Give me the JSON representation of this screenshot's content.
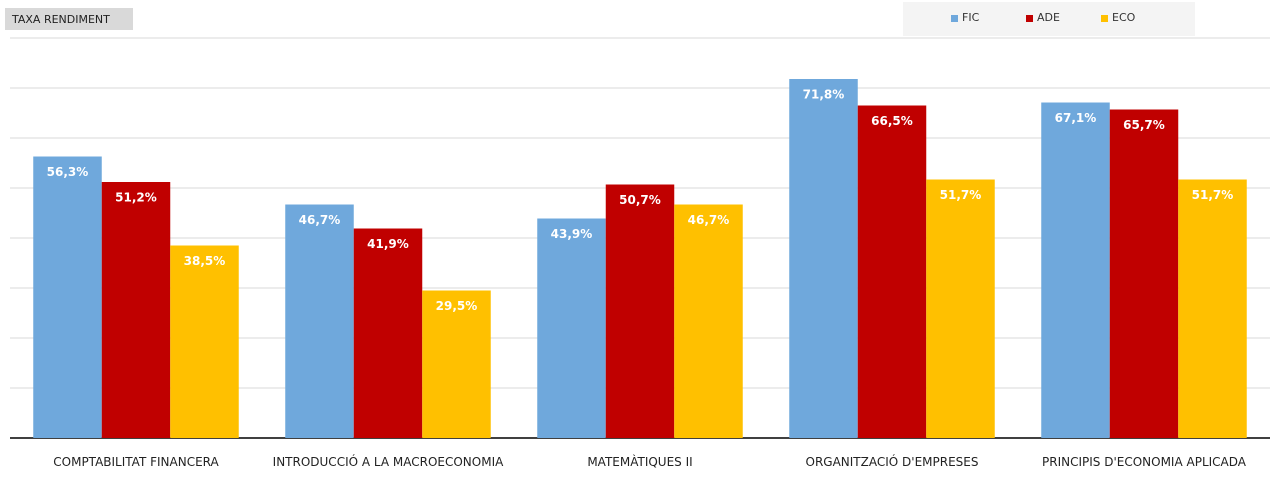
{
  "chart_data": {
    "type": "bar",
    "title": "TAXA RENDIMENT",
    "categories": [
      "COMPTABILITAT FINANCERA",
      "INTRODUCCIÓ A LA MACROECONOMIA",
      "MATEMÀTIQUES II",
      "ORGANITZACIÓ D'EMPRESES",
      "PRINCIPIS D'ECONOMIA APLICADA"
    ],
    "series": [
      {
        "name": "FIC",
        "color": "#6fa8dc",
        "values": [
          56.3,
          46.7,
          43.9,
          71.8,
          67.1
        ],
        "value_labels": [
          "56,3%",
          "46,7%",
          "43,9%",
          "71,8%",
          "67,1%"
        ]
      },
      {
        "name": "ADE",
        "color": "#c00000",
        "values": [
          51.2,
          41.9,
          50.7,
          66.5,
          65.7
        ],
        "value_labels": [
          "51,2%",
          "41,9%",
          "50,7%",
          "66,5%",
          "65,7%"
        ]
      },
      {
        "name": "ECO",
        "color": "#ffc000",
        "values": [
          38.5,
          29.5,
          46.7,
          51.7,
          51.7
        ],
        "value_labels": [
          "38,5%",
          "29,5%",
          "46,7%",
          "51,7%",
          "51,7%"
        ]
      }
    ],
    "ylim": [
      0,
      80
    ],
    "yticks": [
      10,
      20,
      30,
      40,
      50,
      60,
      70,
      80
    ],
    "grid": true,
    "legend": "top-right"
  }
}
